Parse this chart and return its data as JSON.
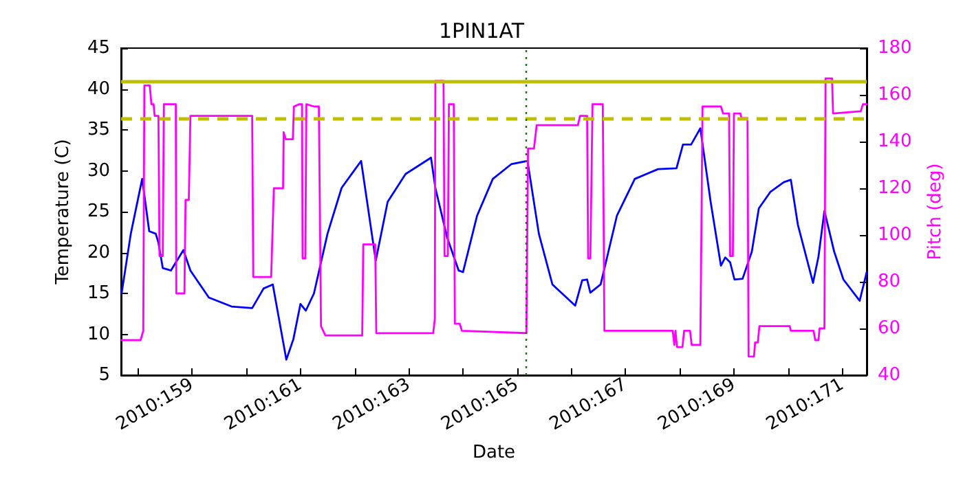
{
  "chart_data": {
    "type": "line",
    "title": "1PIN1AT",
    "xlabel": "Date",
    "ylabel": "Temperature (C)",
    "y2label": "Pitch (deg)",
    "xlim": [
      "2010-06-06T16:34",
      "2010-06-20T10:48"
    ],
    "xticks": [
      {
        "value": "2010-06-07",
        "label": null
      },
      {
        "value": "2010-06-08",
        "label": "2010:159"
      },
      {
        "value": "2010-06-09",
        "label": null
      },
      {
        "value": "2010-06-10",
        "label": "2010:161"
      },
      {
        "value": "2010-06-11",
        "label": null
      },
      {
        "value": "2010-06-12",
        "label": "2010:163"
      },
      {
        "value": "2010-06-13",
        "label": null
      },
      {
        "value": "2010-06-14",
        "label": "2010:165"
      },
      {
        "value": "2010-06-15",
        "label": null
      },
      {
        "value": "2010-06-16",
        "label": "2010:167"
      },
      {
        "value": "2010-06-17",
        "label": null
      },
      {
        "value": "2010-06-18",
        "label": "2010:169"
      },
      {
        "value": "2010-06-19",
        "label": null
      },
      {
        "value": "2010-06-20",
        "label": "2010:171"
      }
    ],
    "ylim": [
      5,
      45
    ],
    "yticks": [
      5,
      10,
      15,
      20,
      25,
      30,
      35,
      40,
      45
    ],
    "y2lim": [
      40,
      180
    ],
    "y2ticks": [
      40,
      60,
      80,
      100,
      120,
      140,
      160,
      180
    ],
    "grid": false,
    "marker": "none",
    "line_style": "solid",
    "ref_lines": [
      {
        "axis": "y",
        "value": 41,
        "color": "#bfbf00",
        "line_style": "solid"
      },
      {
        "axis": "y",
        "value": 36.4,
        "color": "#bfbf00",
        "line_style": "dashed"
      },
      {
        "axis": "x",
        "value": "2010-06-14T04:05",
        "color": "#008000",
        "line_style": "dotted"
      }
    ],
    "series": [
      {
        "color": "#0000ff",
        "axis": "y",
        "x": [
          "2010-06-06T16:48",
          "2010-06-06T20:53",
          "2010-06-07T01:55",
          "2010-06-07T05:02",
          "2010-06-07T07:55",
          "2010-06-07T09:07",
          "2010-06-07T11:02",
          "2010-06-07T14:38",
          "2010-06-07T20:10",
          "2010-06-07T23:17",
          "2010-06-08T07:26",
          "2010-06-08T17:31",
          "2010-06-09T02:38",
          "2010-06-09T07:41",
          "2010-06-09T11:46",
          "2010-06-09T17:46",
          "2010-06-09T20:53",
          "2010-06-10T00:00",
          "2010-06-10T02:24",
          "2010-06-10T06:00",
          "2010-06-10T12:00",
          "2010-06-10T18:14",
          "2010-06-11T02:53",
          "2010-06-11T09:22",
          "2010-06-11T14:38",
          "2010-06-11T22:34",
          "2010-06-12T09:50",
          "2010-06-12T11:46",
          "2010-06-12T17:02",
          "2010-06-12T22:05",
          "2010-06-13T00:00",
          "2010-06-13T06:14",
          "2010-06-13T13:12",
          "2010-06-13T21:22",
          "2010-06-14T04:34",
          "2010-06-14T09:36",
          "2010-06-14T15:36",
          "2010-06-15T01:41",
          "2010-06-15T04:48",
          "2010-06-15T06:58",
          "2010-06-15T08:24",
          "2010-06-15T12:58",
          "2010-06-15T20:10",
          "2010-06-16T04:05",
          "2010-06-16T14:24",
          "2010-06-16T22:34",
          "2010-06-17T01:26",
          "2010-06-17T05:02",
          "2010-06-17T09:07",
          "2010-06-17T13:41",
          "2010-06-17T18:14",
          "2010-06-17T20:10",
          "2010-06-17T22:19",
          "2010-06-18T00:14",
          "2010-06-18T03:50",
          "2010-06-18T07:55",
          "2010-06-18T11:02",
          "2010-06-18T16:05",
          "2010-06-18T22:05",
          "2010-06-19T01:12",
          "2010-06-19T04:19",
          "2010-06-19T11:02",
          "2010-06-19T13:26",
          "2010-06-19T16:05",
          "2010-06-19T20:24",
          "2010-06-20T00:29",
          "2010-06-20T07:41",
          "2010-06-20T10:48"
        ],
        "values": [
          15.0,
          22.3,
          29.0,
          22.6,
          22.3,
          21.2,
          18.1,
          17.8,
          20.3,
          17.8,
          14.5,
          13.4,
          13.2,
          15.6,
          16.1,
          6.9,
          9.4,
          13.7,
          12.9,
          15.0,
          22.3,
          27.9,
          31.2,
          19.0,
          26.2,
          29.6,
          31.6,
          27.9,
          21.8,
          17.8,
          17.6,
          24.5,
          29.0,
          30.8,
          31.2,
          22.3,
          16.1,
          13.5,
          16.6,
          16.7,
          15.1,
          16.1,
          24.5,
          29.0,
          30.2,
          30.3,
          33.2,
          33.2,
          35.2,
          26.2,
          18.4,
          19.4,
          18.8,
          16.7,
          16.8,
          20.1,
          25.4,
          27.4,
          28.6,
          28.9,
          23.4,
          16.3,
          19.5,
          25.1,
          20.1,
          16.7,
          14.1,
          17.6
        ]
      },
      {
        "color": "#ff00ff",
        "axis": "y2",
        "x": [
          "2010-06-06T16:48",
          "2010-06-07T01:12",
          "2010-06-07T02:24",
          "2010-06-07T02:53",
          "2010-06-07T05:17",
          "2010-06-07T06:00",
          "2010-06-07T06:58",
          "2010-06-07T07:26",
          "2010-06-07T09:07",
          "2010-06-07T09:36",
          "2010-06-07T11:02",
          "2010-06-07T11:31",
          "2010-06-07T16:48",
          "2010-06-07T17:02",
          "2010-06-07T20:38",
          "2010-06-07T21:07",
          "2010-06-07T22:34",
          "2010-06-07T23:17",
          "2010-06-09T02:38",
          "2010-06-09T03:07",
          "2010-06-09T11:02",
          "2010-06-09T12:14",
          "2010-06-09T16:19",
          "2010-06-09T16:34",
          "2010-06-09T17:31",
          "2010-06-09T20:38",
          "2010-06-09T21:07",
          "2010-06-09T23:31",
          "2010-06-10T00:43",
          "2010-06-10T00:58",
          "2010-06-10T02:10",
          "2010-06-10T02:38",
          "2010-06-10T06:00",
          "2010-06-10T08:10",
          "2010-06-10T09:07",
          "2010-06-10T11:02",
          "2010-06-11T03:22",
          "2010-06-11T03:50",
          "2010-06-11T09:07",
          "2010-06-11T09:36",
          "2010-06-12T10:48",
          "2010-06-12T11:31",
          "2010-06-12T11:46",
          "2010-06-12T15:22",
          "2010-06-12T15:50",
          "2010-06-12T17:17",
          "2010-06-12T17:46",
          "2010-06-12T19:55",
          "2010-06-12T20:24",
          "2010-06-12T22:34",
          "2010-06-12T23:31",
          "2010-06-14T04:05",
          "2010-06-14T04:48",
          "2010-06-14T07:26",
          "2010-06-14T08:38",
          "2010-06-15T02:53",
          "2010-06-15T03:50",
          "2010-06-15T06:58",
          "2010-06-15T07:26",
          "2010-06-15T08:24",
          "2010-06-15T09:22",
          "2010-06-15T13:55",
          "2010-06-15T14:38",
          "2010-06-16T20:53",
          "2010-06-16T21:36",
          "2010-06-16T22:05",
          "2010-06-16T22:48",
          "2010-06-17T01:12",
          "2010-06-17T01:55",
          "2010-06-17T04:34",
          "2010-06-17T05:17",
          "2010-06-17T09:07",
          "2010-06-17T10:05",
          "2010-06-17T18:14",
          "2010-06-17T19:12",
          "2010-06-17T21:50",
          "2010-06-17T22:19",
          "2010-06-17T23:31",
          "2010-06-18T00:00",
          "2010-06-18T02:53",
          "2010-06-18T03:22",
          "2010-06-18T06:00",
          "2010-06-18T06:29",
          "2010-06-18T08:53",
          "2010-06-18T09:22",
          "2010-06-18T10:34",
          "2010-06-18T11:17",
          "2010-06-19T00:43",
          "2010-06-19T01:12",
          "2010-06-19T11:17",
          "2010-06-19T12:00",
          "2010-06-19T13:26",
          "2010-06-19T13:55",
          "2010-06-19T16:05",
          "2010-06-19T16:34",
          "2010-06-19T19:26",
          "2010-06-19T19:55",
          "2010-06-20T08:10",
          "2010-06-20T09:07",
          "2010-06-20T10:48"
        ],
        "values": [
          55,
          55,
          59,
          164,
          164,
          156,
          156,
          151,
          151,
          91,
          91,
          156,
          156,
          75,
          75,
          115,
          115,
          151,
          151,
          82,
          82,
          120,
          120,
          144,
          141,
          141,
          155,
          156,
          156,
          90,
          90,
          156,
          155,
          155,
          61,
          57,
          57,
          96,
          96,
          58,
          58,
          64,
          166,
          166,
          91,
          91,
          156,
          156,
          62,
          62,
          59,
          58,
          137,
          137,
          147,
          147,
          151,
          151,
          90,
          90,
          156,
          156,
          59,
          59,
          53,
          59,
          52,
          52,
          59,
          59,
          53,
          53,
          155,
          155,
          152,
          152,
          91,
          91,
          152,
          152,
          150,
          150,
          48,
          48,
          54,
          54,
          61,
          61,
          59,
          59,
          55,
          55,
          60,
          60,
          167,
          167,
          152,
          153,
          156,
          156
        ]
      }
    ]
  }
}
